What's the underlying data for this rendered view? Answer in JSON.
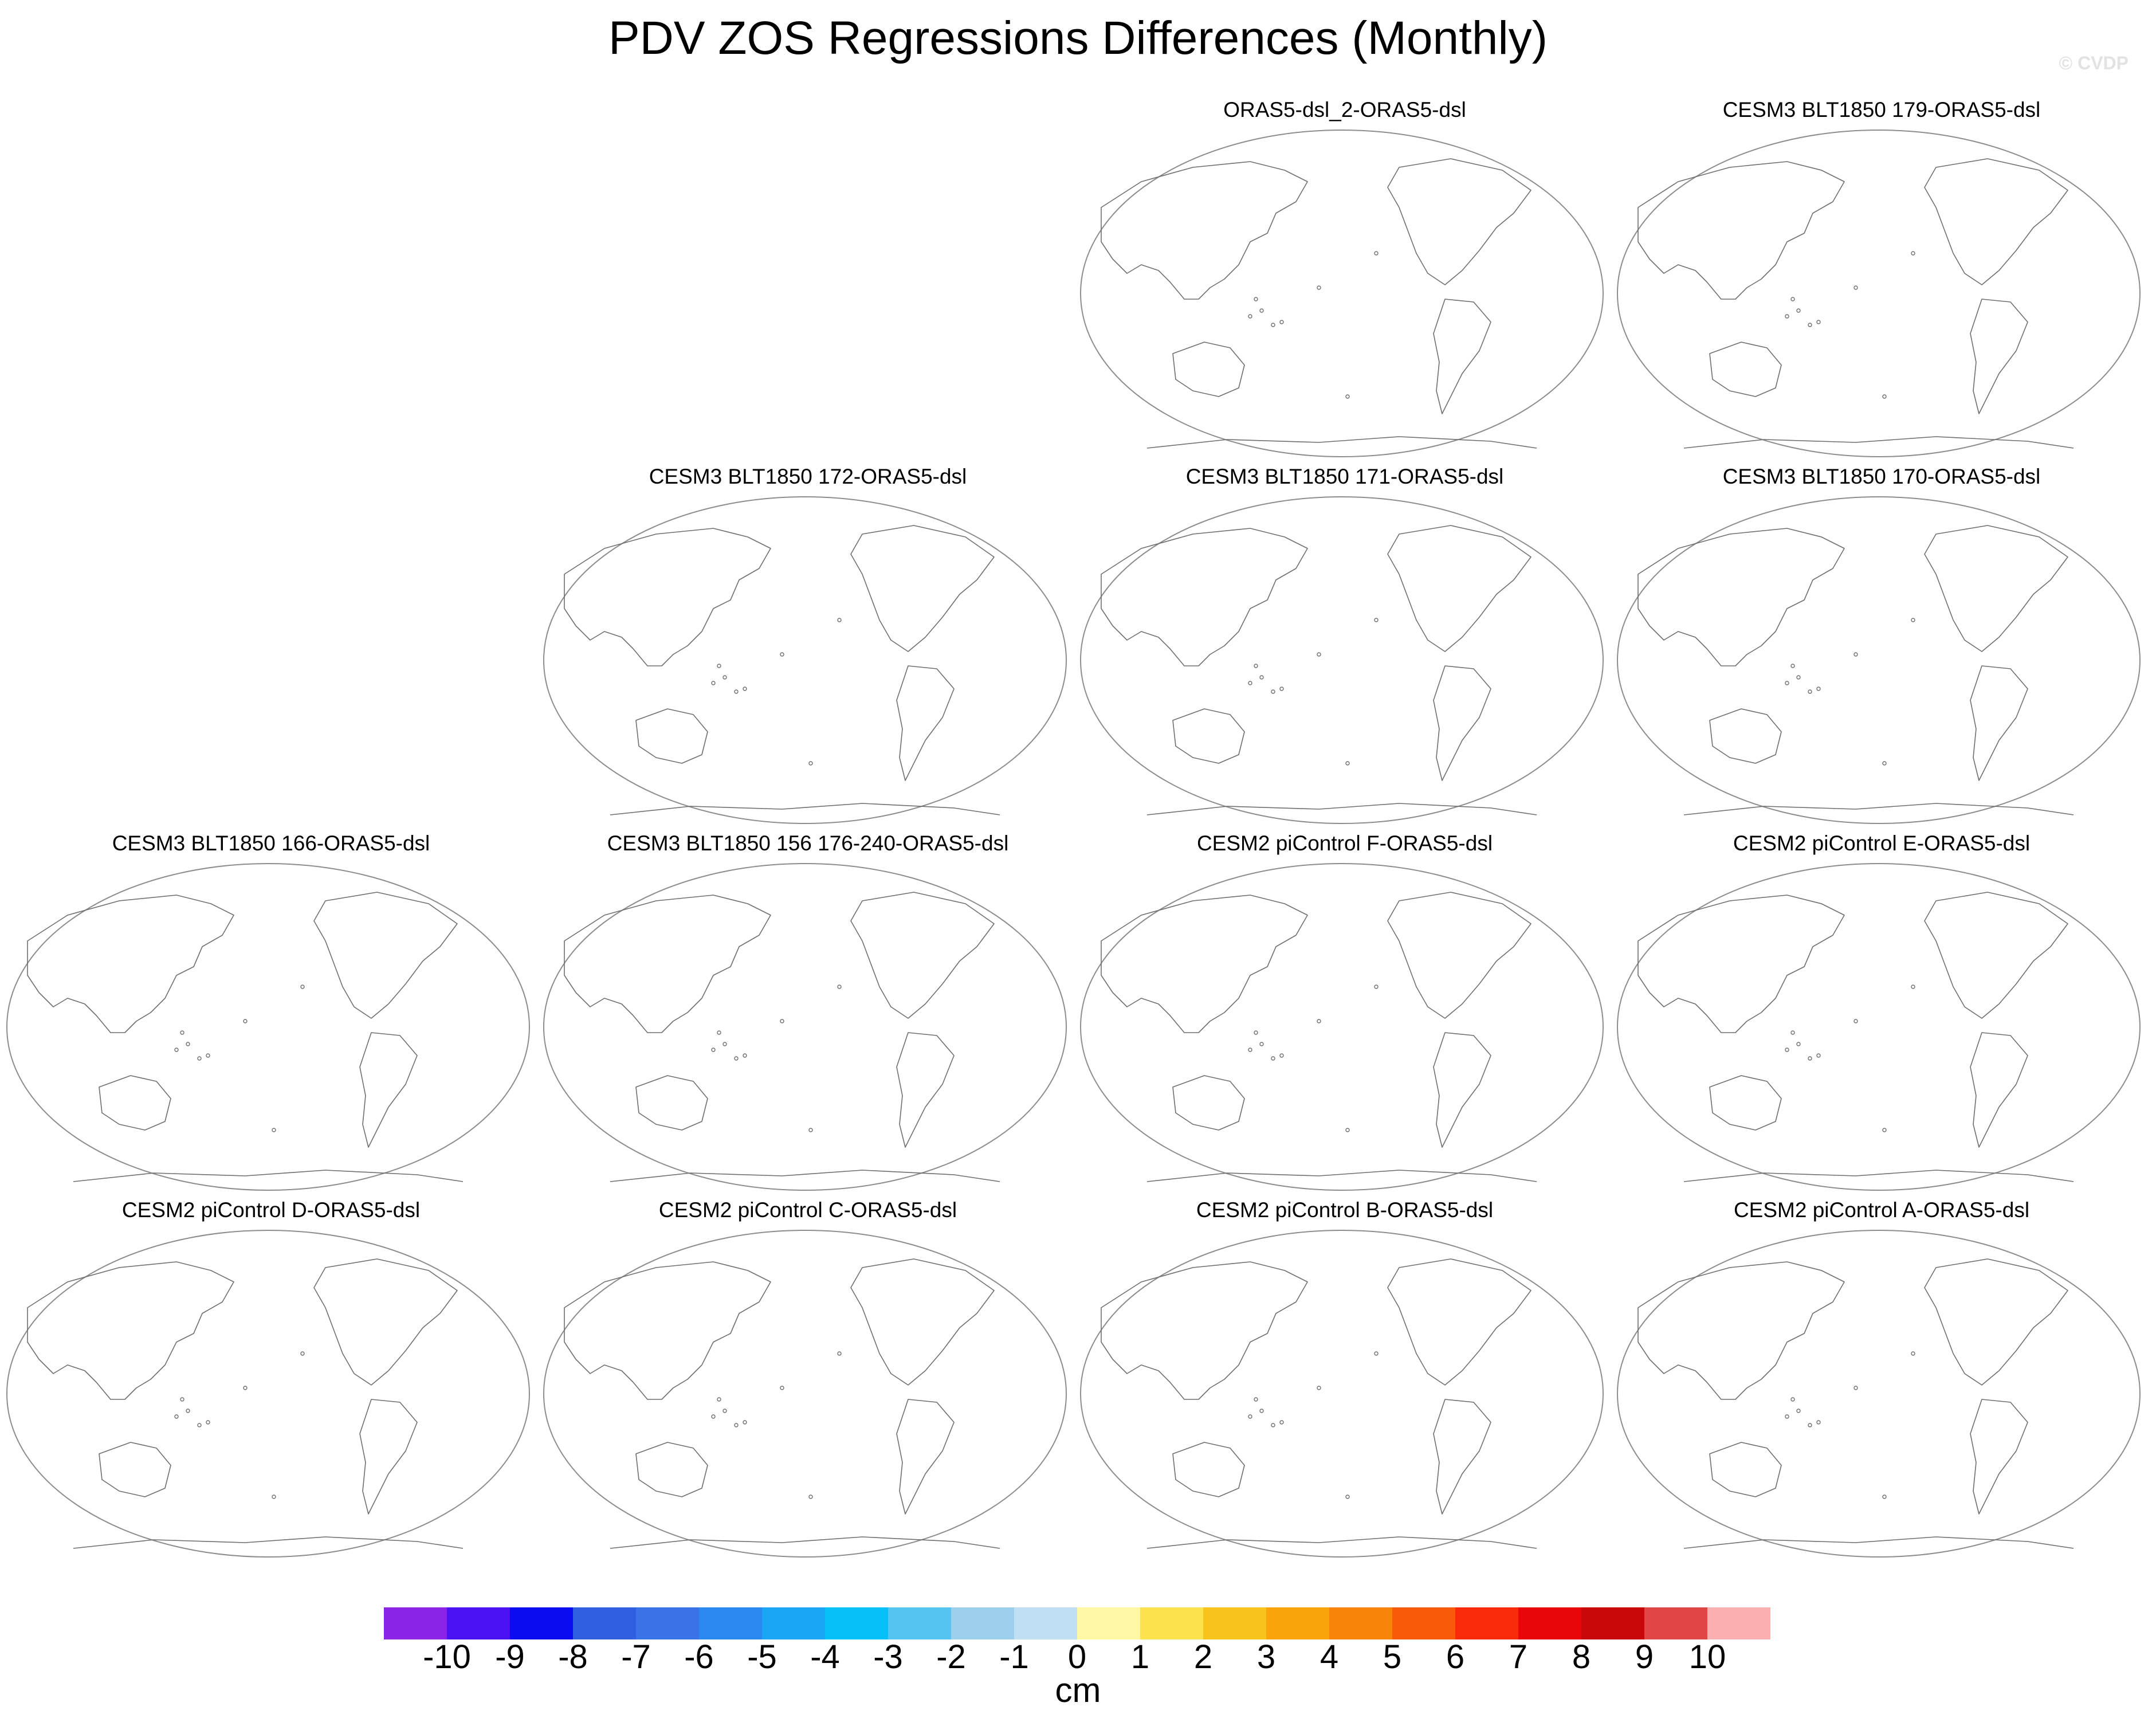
{
  "title": "PDV ZOS Regressions Differences (Monthly)",
  "watermark": "© CVDP",
  "chart_data": {
    "type": "map-panels",
    "projection": "Robinson (Pacific-centered)",
    "variable": "ZOS regression difference",
    "fill": "none (no shaded values shown)",
    "layout": {
      "rows": 4,
      "columns": 4,
      "empty_slots": 3
    },
    "panels": [
      {
        "title": "ORAS5-dsl_2-ORAS5-dsl",
        "row": 0,
        "col": 2
      },
      {
        "title": "CESM3 BLT1850 179-ORAS5-dsl",
        "row": 0,
        "col": 3
      },
      {
        "title": "CESM3 BLT1850 172-ORAS5-dsl",
        "row": 1,
        "col": 1
      },
      {
        "title": "CESM3 BLT1850 171-ORAS5-dsl",
        "row": 1,
        "col": 2
      },
      {
        "title": "CESM3 BLT1850 170-ORAS5-dsl",
        "row": 1,
        "col": 3
      },
      {
        "title": "CESM3 BLT1850 166-ORAS5-dsl",
        "row": 2,
        "col": 0
      },
      {
        "title": "CESM3 BLT1850 156 176-240-ORAS5-dsl",
        "row": 2,
        "col": 1
      },
      {
        "title": "CESM2 piControl F-ORAS5-dsl",
        "row": 2,
        "col": 2
      },
      {
        "title": "CESM2 piControl E-ORAS5-dsl",
        "row": 2,
        "col": 3
      },
      {
        "title": "CESM2 piControl D-ORAS5-dsl",
        "row": 3,
        "col": 0
      },
      {
        "title": "CESM2 piControl C-ORAS5-dsl",
        "row": 3,
        "col": 1
      },
      {
        "title": "CESM2 piControl B-ORAS5-dsl",
        "row": 3,
        "col": 2
      },
      {
        "title": "CESM2 piControl A-ORAS5-dsl",
        "row": 3,
        "col": 3
      }
    ],
    "colorbar": {
      "units": "cm",
      "ticks": [
        "-10",
        "-9",
        "-8",
        "-7",
        "-6",
        "-5",
        "-4",
        "-3",
        "-2",
        "-1",
        "0",
        "1",
        "2",
        "3",
        "4",
        "5",
        "6",
        "7",
        "8",
        "9",
        "10"
      ],
      "colors": [
        "#8a24e6",
        "#4a12f0",
        "#0c0cf0",
        "#3060e0",
        "#3a72e8",
        "#2a88f0",
        "#1aa6f4",
        "#08c0f8",
        "#56c4f0",
        "#9ccfec",
        "#bfe0f4",
        "#fef8a4",
        "#fce24c",
        "#f8c41c",
        "#f8a40a",
        "#f8840a",
        "#f85a0a",
        "#f82a0a",
        "#e8060a",
        "#c80808",
        "#e04646",
        "#fab0b0"
      ]
    }
  }
}
